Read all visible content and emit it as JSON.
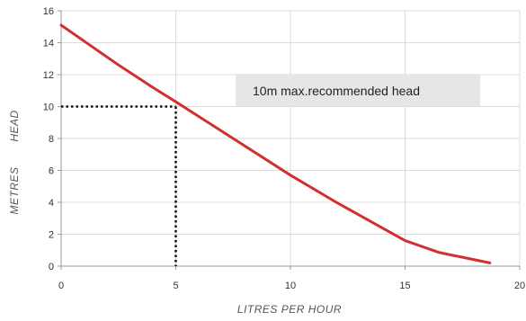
{
  "chart_data": {
    "type": "line",
    "title": "",
    "xlabel": "LITRES  PER  HOUR",
    "ylabel_parts": [
      "METRES",
      "HEAD"
    ],
    "xlim": [
      0,
      20
    ],
    "ylim": [
      0,
      16
    ],
    "x_ticks": [
      0,
      5,
      10,
      15,
      20
    ],
    "y_ticks": [
      0,
      2,
      4,
      6,
      8,
      10,
      12,
      14,
      16
    ],
    "grid": true,
    "series": [
      {
        "color": "#d32f2f",
        "x": [
          0,
          1,
          2.5,
          4,
          5,
          7.5,
          10,
          12,
          13,
          15,
          16.5,
          18.7
        ],
        "y": [
          15.1,
          14.1,
          12.6,
          11.2,
          10.3,
          8.0,
          5.7,
          4.0,
          3.2,
          1.6,
          0.85,
          0.2
        ]
      }
    ],
    "reference_lines": {
      "x": 5,
      "y": 10,
      "color": "#111111"
    },
    "annotation": {
      "text": "10m max.recommended head",
      "box_color": "#e6e6e6"
    }
  }
}
